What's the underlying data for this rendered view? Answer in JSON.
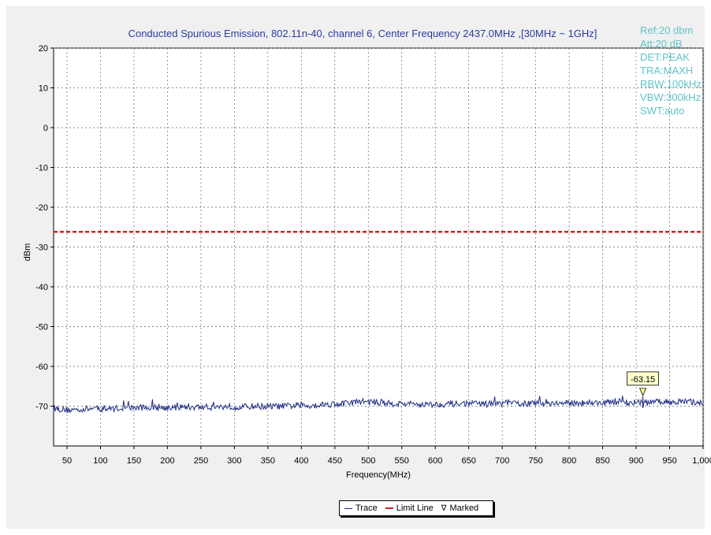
{
  "chart_data": {
    "type": "line",
    "title": "Conducted Spurious Emission, 802.11n-40, channel 6, Center Frequency 2437.0MHz ,[30MHz ~ 1GHz]",
    "xlabel": "Frequency(MHz)",
    "ylabel": "dBm",
    "xlim": [
      30,
      1000
    ],
    "ylim": [
      -80,
      20
    ],
    "x_ticks": [
      50,
      100,
      150,
      200,
      250,
      300,
      350,
      400,
      450,
      500,
      550,
      600,
      650,
      700,
      750,
      800,
      850,
      900,
      950,
      1000
    ],
    "x_tick_labels": [
      "50",
      "100",
      "150",
      "200",
      "250",
      "300",
      "350",
      "400",
      "450",
      "500",
      "550",
      "600",
      "650",
      "700",
      "750",
      "800",
      "850",
      "900",
      "950",
      "1,000"
    ],
    "y_ticks": [
      20,
      10,
      0,
      -10,
      -20,
      -30,
      -40,
      -50,
      -60,
      -70
    ],
    "y_tick_labels": [
      "20",
      "10",
      "0",
      "-10",
      "-20",
      "-30",
      "-40",
      "-50",
      "-60",
      "-70"
    ],
    "grid": true,
    "series": [
      {
        "name": "Trace",
        "color": "#1f2d86",
        "x": [
          30,
          50,
          70,
          90,
          110,
          130,
          150,
          170,
          190,
          210,
          230,
          250,
          270,
          290,
          310,
          330,
          350,
          370,
          390,
          410,
          430,
          450,
          470,
          490,
          510,
          530,
          550,
          570,
          590,
          610,
          630,
          650,
          670,
          690,
          710,
          730,
          750,
          770,
          790,
          810,
          830,
          850,
          870,
          890,
          910,
          930,
          950,
          970,
          990,
          1000
        ],
        "y": [
          -70.5,
          -71.0,
          -70.8,
          -70.6,
          -70.7,
          -70.5,
          -70.4,
          -70.3,
          -70.4,
          -70.3,
          -70.2,
          -70.3,
          -70.2,
          -70.1,
          -70.2,
          -70.0,
          -70.1,
          -70.0,
          -69.9,
          -69.9,
          -69.6,
          -69.4,
          -69.3,
          -68.8,
          -69.0,
          -69.3,
          -69.4,
          -69.5,
          -69.6,
          -69.5,
          -69.4,
          -69.3,
          -69.5,
          -69.4,
          -69.2,
          -69.4,
          -69.3,
          -69.2,
          -69.3,
          -69.2,
          -69.1,
          -69.2,
          -69.0,
          -69.1,
          -69.2,
          -69.0,
          -68.9,
          -68.9,
          -69.0,
          -69.2
        ]
      },
      {
        "name": "Limit Line",
        "color": "#d42020",
        "x": [
          30,
          1000
        ],
        "y": [
          -26.2,
          -26.2
        ]
      }
    ],
    "marker": {
      "name": "Marked",
      "x": 910,
      "y": -63.15,
      "label": "-63.15"
    },
    "legend_position": "bottom-center",
    "settings": [
      "Ref:20 dbm",
      "Att:20 dB",
      "DET:PEAK",
      "TRA:MAXH",
      "RBW:100kHz",
      "VBW:300kHz",
      "SWT:auto"
    ]
  },
  "legend": {
    "trace_label": "Trace",
    "limit_label": "Limit Line",
    "marked_label": "Marked",
    "marked_symbol": "∇"
  }
}
